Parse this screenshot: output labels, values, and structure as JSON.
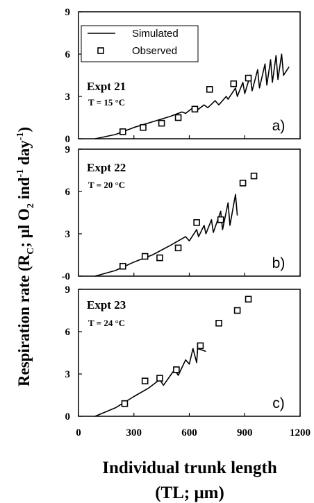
{
  "figure": {
    "ylabel": {
      "main": "Respiration rate (R",
      "sub_c": "C",
      "mid": "; μl O",
      "sub_2": "2",
      "ind": " ind",
      "sup_1": "-1",
      "day": " day",
      "sup_2": "-1",
      "close": ")"
    },
    "xlabel_line1": "Individual trunk length",
    "xlabel_line2": "(TL; μm)",
    "legend": {
      "simulated": "Simulated",
      "observed": "Observed"
    },
    "colors": {
      "line": "#000000",
      "marker_edge": "#000000",
      "marker_fill": "#ffffff"
    }
  },
  "chart_data": [
    {
      "type": "line",
      "panel_tag": "a)",
      "experiment": "Expt 21",
      "temperature": "T = 15 °C",
      "xlim": [
        0,
        1200
      ],
      "ylim": [
        0,
        9
      ],
      "xticks": [
        0,
        300,
        600,
        900,
        1200
      ],
      "yticks": [
        0,
        3,
        6,
        9
      ],
      "ytick_labels": [
        "0",
        "3",
        "6",
        "9"
      ],
      "legend_position": "top-left",
      "series": [
        {
          "name": "Simulated",
          "kind": "line",
          "x": [
            90,
            200,
            300,
            400,
            500,
            560,
            580,
            620,
            640,
            680,
            700,
            740,
            760,
            800,
            810,
            850,
            860,
            890,
            900,
            930,
            940,
            970,
            980,
            1010,
            1020,
            1040,
            1050,
            1070,
            1080,
            1100,
            1110,
            1140
          ],
          "y": [
            0,
            0.3,
            0.8,
            1.2,
            1.6,
            1.9,
            1.8,
            2.2,
            2.0,
            2.4,
            2.2,
            2.7,
            2.4,
            3.0,
            2.8,
            3.6,
            3.0,
            4.0,
            3.2,
            4.5,
            3.4,
            4.9,
            3.6,
            5.3,
            3.8,
            5.6,
            4.0,
            5.9,
            4.2,
            6.0,
            4.5,
            5.1
          ]
        },
        {
          "name": "Observed",
          "kind": "markers",
          "x": [
            240,
            350,
            450,
            540,
            630,
            710,
            840,
            920
          ],
          "y": [
            0.5,
            0.8,
            1.1,
            1.5,
            2.1,
            3.5,
            3.9,
            4.3
          ]
        }
      ]
    },
    {
      "type": "line",
      "panel_tag": "b)",
      "experiment": "Expt 22",
      "temperature": "T = 20 °C",
      "xlim": [
        0,
        1200
      ],
      "ylim": [
        0,
        9
      ],
      "xticks": [
        0,
        300,
        600,
        900,
        1200
      ],
      "yticks": [
        0,
        3,
        6,
        9
      ],
      "ytick_labels": [
        "-0",
        "3",
        "6",
        "9"
      ],
      "series": [
        {
          "name": "Simulated",
          "kind": "line",
          "x": [
            90,
            200,
            300,
            400,
            500,
            580,
            600,
            640,
            650,
            680,
            690,
            720,
            730,
            770,
            780,
            810,
            820,
            850,
            860
          ],
          "y": [
            0,
            0.4,
            1.0,
            1.5,
            2.2,
            2.8,
            2.5,
            3.3,
            2.8,
            3.6,
            3.0,
            4.0,
            3.1,
            4.6,
            3.3,
            5.2,
            3.6,
            5.8,
            4.3
          ]
        },
        {
          "name": "Observed",
          "kind": "markers",
          "x": [
            240,
            360,
            440,
            540,
            640,
            770,
            890,
            950
          ],
          "y": [
            0.7,
            1.4,
            1.3,
            2.0,
            3.8,
            4.0,
            6.6,
            7.1
          ]
        }
      ]
    },
    {
      "type": "line",
      "panel_tag": "c)",
      "experiment": "Expt 23",
      "temperature": "T = 24 °C",
      "xlim": [
        0,
        1200
      ],
      "ylim": [
        0,
        9
      ],
      "xticks": [
        0,
        300,
        600,
        900,
        1200
      ],
      "xtick_labels": [
        "0",
        "300",
        "600",
        "900",
        "1200"
      ],
      "yticks": [
        0,
        3,
        6,
        9
      ],
      "ytick_labels": [
        "0",
        "3",
        "6",
        "9"
      ],
      "series": [
        {
          "name": "Simulated",
          "kind": "line",
          "x": [
            90,
            200,
            300,
            380,
            440,
            460,
            520,
            540,
            580,
            600,
            620,
            640,
            645,
            690
          ],
          "y": [
            0,
            0.6,
            1.4,
            2.0,
            2.6,
            2.2,
            3.3,
            2.9,
            4.0,
            3.7,
            4.8,
            3.8,
            4.8,
            4.6
          ]
        },
        {
          "name": "Observed",
          "kind": "markers",
          "x": [
            250,
            360,
            440,
            530,
            660,
            760,
            860,
            920
          ],
          "y": [
            0.9,
            2.5,
            2.7,
            3.3,
            5.0,
            6.6,
            7.5,
            8.3
          ]
        }
      ]
    }
  ]
}
